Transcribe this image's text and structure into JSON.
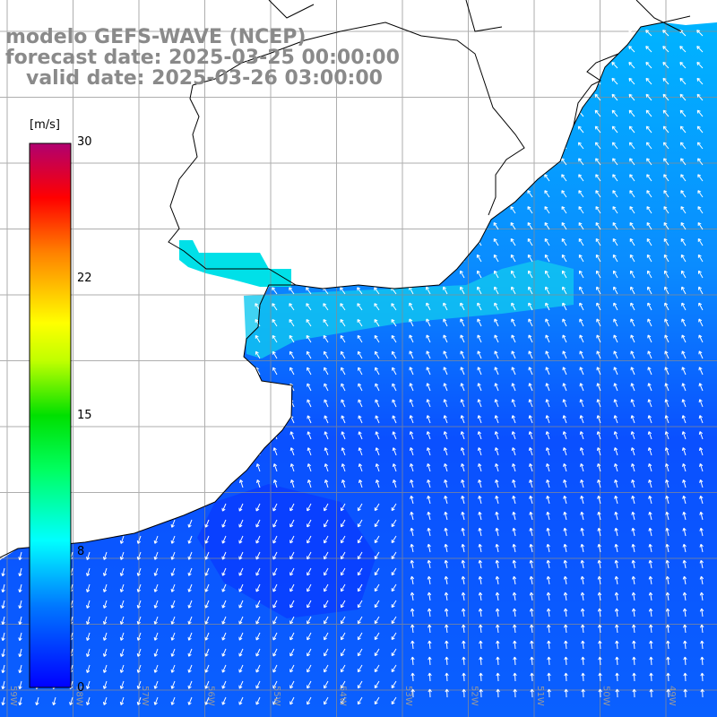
{
  "header": {
    "line1": "modelo GEFS-WAVE (NCEP)",
    "line2": "forecast date: 2025-03-25 00:00:00",
    "line3": "   valid date: 2025-03-26 03:00:00"
  },
  "colorbar": {
    "unit": "[m/s]",
    "ticks": [
      "30",
      "22",
      "15",
      "8",
      "0"
    ],
    "tick_values": [
      30,
      22,
      15,
      8,
      0
    ],
    "range": [
      0,
      30
    ],
    "colors": [
      "#0000ff",
      "#0070ff",
      "#00bfff",
      "#00ffff",
      "#00ff7f",
      "#00ff00",
      "#7fff00",
      "#ffff00",
      "#ffbf00",
      "#ff7f00",
      "#ff3f00",
      "#ff0000",
      "#ff0070",
      "#c8006e",
      "#a0106e"
    ]
  },
  "map": {
    "field": "wind speed with wind direction arrows",
    "land_color": "#ffffff",
    "coast_color": "#000000",
    "grid_color": "#808080",
    "arrow_color": "#ffffff",
    "lon_labels": [
      "59W",
      "58W",
      "57W",
      "56W",
      "55W",
      "54W",
      "53W",
      "52W",
      "51W",
      "50W",
      "49W"
    ]
  }
}
